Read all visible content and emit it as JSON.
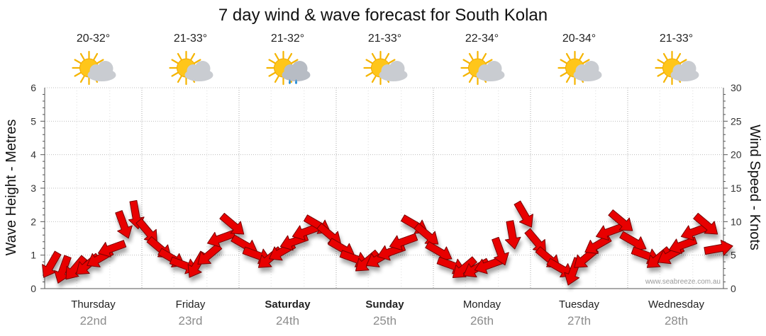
{
  "chart_data": {
    "type": "line",
    "title": "7 day wind & wave forecast for South Kolan",
    "ylabel_left": "Wave Height - Metres",
    "ylabel_right": "Wind Speed - Knots",
    "ylim_left": [
      0,
      6
    ],
    "ylim_right": [
      0,
      30
    ],
    "yticks_left": [
      "0",
      "1",
      "2",
      "3",
      "4",
      "5",
      "6"
    ],
    "yticks_right": [
      "0",
      "5",
      "10",
      "15",
      "20",
      "25",
      "30"
    ],
    "grid": true,
    "watermark": "www.seabreeze.com.au",
    "days": [
      {
        "name": "Thursday",
        "date": "22nd",
        "temp": "20-32°",
        "icon": "partly-cloudy-icon",
        "bold": false
      },
      {
        "name": "Friday",
        "date": "23rd",
        "temp": "21-33°",
        "icon": "partly-cloudy-icon",
        "bold": false
      },
      {
        "name": "Saturday",
        "date": "24th",
        "temp": "21-32°",
        "icon": "showers-icon",
        "bold": true
      },
      {
        "name": "Sunday",
        "date": "25th",
        "temp": "21-33°",
        "icon": "partly-cloudy-icon",
        "bold": true
      },
      {
        "name": "Monday",
        "date": "26th",
        "temp": "22-34°",
        "icon": "partly-cloudy-icon",
        "bold": false
      },
      {
        "name": "Tuesday",
        "date": "27th",
        "temp": "20-34°",
        "icon": "partly-cloudy-icon",
        "bold": false
      },
      {
        "name": "Wednesday",
        "date": "28th",
        "temp": "21-33°",
        "icon": "partly-cloudy-icon",
        "bold": false
      }
    ],
    "wind_series": {
      "name": "Wind Speed (knots)",
      "color": "#e80000",
      "points_per_day": 8,
      "speeds": [
        3.5,
        2.8,
        3.0,
        3.5,
        4.5,
        6.0,
        9.5,
        11.0,
        8.5,
        6.0,
        4.5,
        3.5,
        3.5,
        5.0,
        7.5,
        9.5,
        6.5,
        5.0,
        4.5,
        5.5,
        7.0,
        8.5,
        9.5,
        8.0,
        6.0,
        4.5,
        4.0,
        4.5,
        5.5,
        7.0,
        9.5,
        8.0,
        5.5,
        3.5,
        3.0,
        3.0,
        3.5,
        5.5,
        8.0,
        11.0,
        7.0,
        4.5,
        3.0,
        2.5,
        4.5,
        6.5,
        8.5,
        10.0,
        7.0,
        5.0,
        4.5,
        5.0,
        6.5,
        8.5,
        9.5,
        6.0
      ],
      "directions_deg": [
        210,
        200,
        220,
        230,
        240,
        250,
        160,
        170,
        140,
        130,
        120,
        110,
        210,
        230,
        250,
        130,
        120,
        110,
        230,
        240,
        250,
        250,
        120,
        130,
        120,
        110,
        230,
        240,
        250,
        250,
        120,
        130,
        120,
        110,
        230,
        240,
        250,
        160,
        170,
        150,
        140,
        130,
        120,
        200,
        230,
        240,
        250,
        130,
        120,
        110,
        230,
        240,
        250,
        250,
        130,
        80
      ]
    }
  }
}
